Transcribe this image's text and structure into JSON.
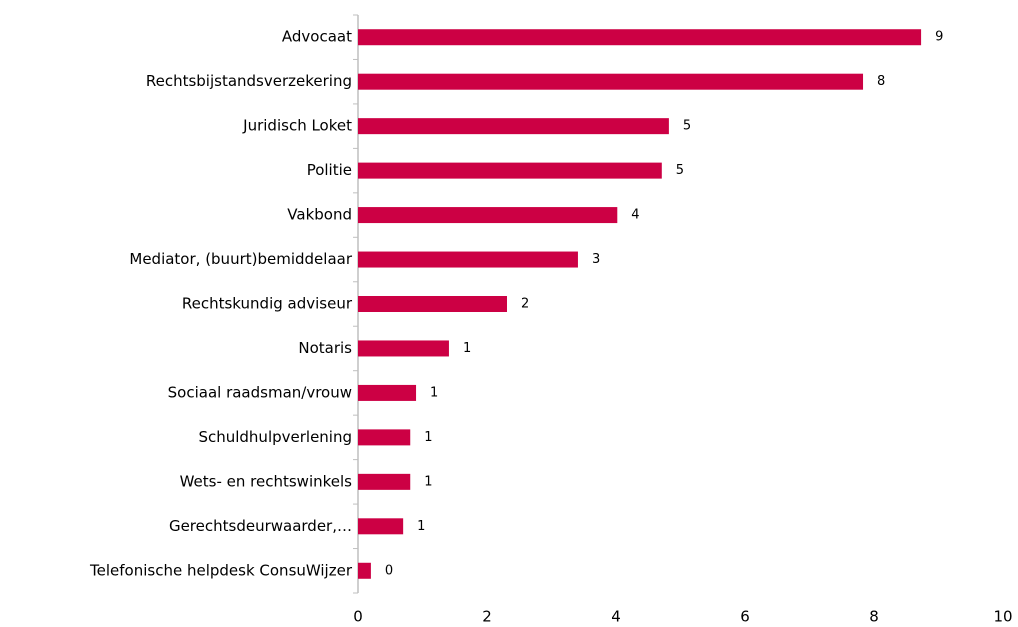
{
  "chart_data": {
    "type": "barh",
    "categories": [
      "Advocaat",
      "Rechtsbijstandsverzekering",
      "Juridisch Loket",
      "Politie",
      "Vakbond",
      "Mediator, (buurt)bemiddelaar",
      "Rechtskundig adviseur",
      "Notaris",
      "Sociaal raadsman/vrouw",
      "Schuldhulpverlening",
      "Wets- en rechtswinkels",
      "Gerechtsdeurwaarder,…",
      "Telefonische helpdesk ConsuWijzer"
    ],
    "values": [
      8.73,
      7.83,
      4.82,
      4.71,
      4.02,
      3.41,
      2.31,
      1.41,
      0.9,
      0.81,
      0.81,
      0.7,
      0.2
    ],
    "value_labels": [
      "9",
      "8",
      "5",
      "5",
      "4",
      "3",
      "2",
      "1",
      "1",
      "1",
      "1",
      "1",
      "0"
    ],
    "color": "#cc0044",
    "xlim": [
      0,
      10
    ],
    "xticks": [
      0,
      2,
      4,
      6,
      8,
      10
    ],
    "grid": false
  }
}
